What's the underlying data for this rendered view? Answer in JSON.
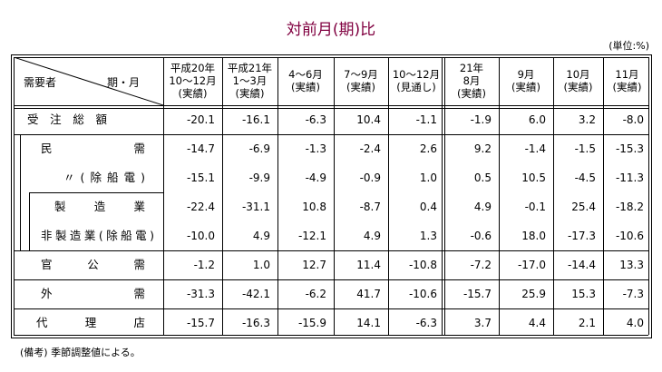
{
  "title": "対前月(期)比",
  "unit": "(単位:%)",
  "table": {
    "corner": [
      "需要者",
      "期・月"
    ],
    "columns": [
      [
        "平成20年",
        "10～12月",
        "(実績)"
      ],
      [
        "平成21年",
        "1～3月",
        "(実績)"
      ],
      [
        "4～6月",
        "(実績)"
      ],
      [
        "7～9月",
        "(実績)"
      ],
      [
        "10～12月",
        "(見通し)"
      ],
      [
        "21年",
        "8月",
        "(実績)"
      ],
      [
        "9月",
        "(実績)"
      ],
      [
        "10月",
        "(実績)"
      ],
      [
        "11月",
        "(実績)"
      ]
    ],
    "rows": [
      {
        "label": "受注総額",
        "values": [
          "-20.1",
          "-16.1",
          "-6.3",
          "10.4",
          "-1.1",
          "-1.9",
          "6.0",
          "3.2",
          "-8.0"
        ]
      },
      {
        "label": "民需",
        "values": [
          "-14.7",
          "-6.9",
          "-1.3",
          "-2.4",
          "2.6",
          "9.2",
          "-1.4",
          "-1.5",
          "-15.3"
        ]
      },
      {
        "label": "〃(除船電)",
        "values": [
          "-15.1",
          "-9.9",
          "-4.9",
          "-0.9",
          "1.0",
          "0.5",
          "10.5",
          "-4.5",
          "-11.3"
        ]
      },
      {
        "label": "製造業",
        "values": [
          "-22.4",
          "-31.1",
          "10.8",
          "-8.7",
          "0.4",
          "4.9",
          "-0.1",
          "25.4",
          "-18.2"
        ]
      },
      {
        "label": "非製造業(除船電)",
        "values": [
          "-10.0",
          "4.9",
          "-12.1",
          "4.9",
          "1.3",
          "-0.6",
          "18.0",
          "-17.3",
          "-10.6"
        ]
      },
      {
        "label": "官公需",
        "values": [
          "-1.2",
          "1.0",
          "12.7",
          "11.4",
          "-10.8",
          "-7.2",
          "-17.0",
          "-14.4",
          "13.3"
        ]
      },
      {
        "label": "外需",
        "values": [
          "-31.3",
          "-42.1",
          "-6.2",
          "41.7",
          "-10.6",
          "-15.7",
          "25.9",
          "15.3",
          "-7.3"
        ]
      },
      {
        "label": "代理店",
        "values": [
          "-15.7",
          "-16.3",
          "-15.9",
          "14.1",
          "-6.3",
          "3.7",
          "4.4",
          "2.1",
          "4.0"
        ]
      }
    ]
  },
  "note": "(備考) 季節調整値による。"
}
